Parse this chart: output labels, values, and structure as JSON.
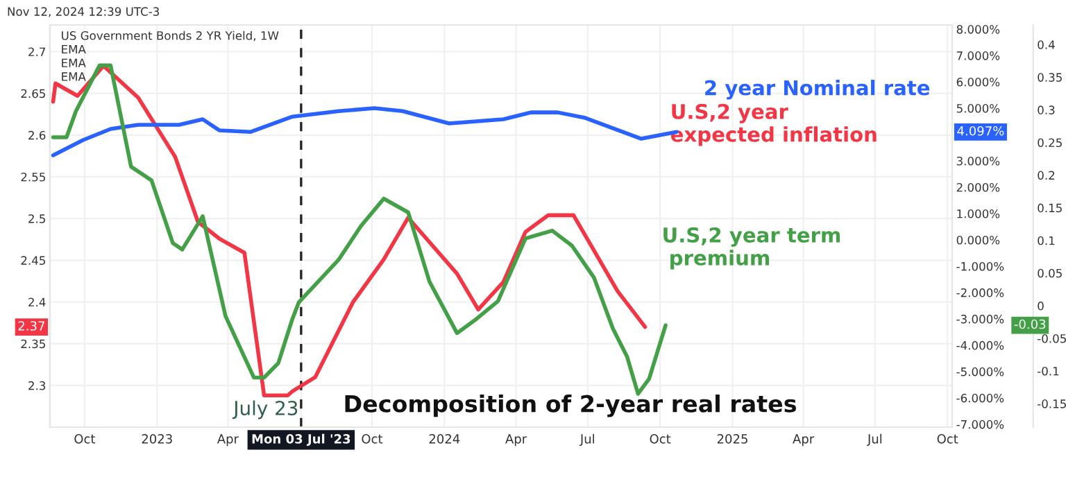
{
  "chart_data": {
    "type": "line",
    "title": "Decomposition of 2-year real rates",
    "subtitle": "US Government Bonds 2 YR Yield, 1W",
    "annotations": [
      "Nov 12, 2024 12:39 UTC-3",
      "EMA",
      "EMA",
      "EMA",
      "4.097%",
      "2.37",
      "-0.03"
    ],
    "xlim": [
      "2022-08-18",
      "2025-10-07"
    ],
    "xticks": [
      {
        "value": "2022-10-01",
        "label": "Oct"
      },
      {
        "value": "2023-01-01",
        "label": "2023"
      },
      {
        "value": "2023-04-01",
        "label": "Apr"
      },
      {
        "value": "2023-07-03",
        "label": "Mon 03 Jul '23"
      },
      {
        "value": "2023-10-01",
        "label": "Oct"
      },
      {
        "value": "2024-01-01",
        "label": "2024"
      },
      {
        "value": "2024-04-01",
        "label": "Apr"
      },
      {
        "value": "2024-07-01",
        "label": "Jul"
      },
      {
        "value": "2024-10-01",
        "label": "Oct"
      },
      {
        "value": "2025-01-01",
        "label": "2025"
      },
      {
        "value": "2025-04-01",
        "label": "Apr"
      },
      {
        "value": "2025-07-01",
        "label": "Jul"
      },
      {
        "value": "2025-10-01",
        "label": "Oct"
      }
    ],
    "ylim": [
      2.25,
      2.732
    ],
    "yticks": [
      2.3,
      2.35,
      2.4,
      2.45,
      2.5,
      2.55,
      2.6,
      2.65,
      2.7
    ],
    "y2lim": [
      -7.11,
      8.16
    ],
    "y2ticks": [
      {
        "value": -7,
        "label": "-7.000%"
      },
      {
        "value": -6,
        "label": "-6.000%"
      },
      {
        "value": -5,
        "label": "-5.000%"
      },
      {
        "value": -4,
        "label": "-4.000%"
      },
      {
        "value": -3,
        "label": "-3.000%"
      },
      {
        "value": -2,
        "label": "-2.000%"
      },
      {
        "value": -1,
        "label": "-1.000%"
      },
      {
        "value": 0,
        "label": "0.000%"
      },
      {
        "value": 1,
        "label": "1.000%"
      },
      {
        "value": 2,
        "label": "2.000%"
      },
      {
        "value": 3,
        "label": "3.000%"
      },
      {
        "value": 5,
        "label": "5.000%"
      },
      {
        "value": 6,
        "label": "6.000%"
      },
      {
        "value": 7,
        "label": "7.000%"
      },
      {
        "value": 8,
        "label": "8.000%"
      }
    ],
    "y3lim": [
      -0.186,
      0.43
    ],
    "y3ticks": [
      {
        "value": -0.15,
        "label": "-0.15"
      },
      {
        "value": -0.1,
        "label": "-0.1"
      },
      {
        "value": -0.05,
        "label": "-0.05"
      },
      0,
      0.05,
      0.1,
      0.15,
      0.2,
      0.25,
      0.3,
      0.35,
      0.4
    ],
    "grid": true,
    "legend": false,
    "ref_lines": [
      {
        "axis": "x",
        "value": "2023-07-03",
        "label": "July 23",
        "color": "#222222",
        "line_style": "dashed"
      }
    ],
    "series": [
      {
        "name": "2 year Nominal rate",
        "color": "#2962ff",
        "axis": "y2",
        "x": [
          "2022-08-22",
          "2022-09-29",
          "2022-11-03",
          "2022-12-08",
          "2023-01-29",
          "2023-02-28",
          "2023-03-21",
          "2023-04-30",
          "2023-06-22",
          "2023-08-20",
          "2023-10-04",
          "2023-11-09",
          "2024-01-07",
          "2024-03-16",
          "2024-04-20",
          "2024-05-24",
          "2024-06-28",
          "2024-09-07",
          "2024-10-22"
        ],
        "values": [
          3.21,
          3.79,
          4.21,
          4.37,
          4.37,
          4.58,
          4.16,
          4.1,
          4.68,
          4.89,
          5.0,
          4.89,
          4.42,
          4.58,
          4.84,
          4.84,
          4.63,
          3.84,
          4.097
        ]
      },
      {
        "name": "U.S,2 year\nexpected inflation",
        "color": "#f23645",
        "axis": "y",
        "x": [
          "2022-08-22",
          "2022-08-25",
          "2022-09-22",
          "2022-10-25",
          "2022-12-08",
          "2023-01-24",
          "2023-02-22",
          "2023-03-21",
          "2023-04-22",
          "2023-05-17",
          "2023-06-16",
          "2023-06-22",
          "2023-07-21",
          "2023-09-07",
          "2023-10-16",
          "2023-11-16",
          "2024-01-17",
          "2024-02-13",
          "2024-03-16",
          "2024-04-13",
          "2024-05-12",
          "2024-06-13",
          "2024-08-08",
          "2024-09-12"
        ],
        "values": [
          2.64,
          2.662,
          2.647,
          2.683,
          2.645,
          2.574,
          2.496,
          2.476,
          2.459,
          2.288,
          2.288,
          2.293,
          2.31,
          2.4,
          2.451,
          2.501,
          2.434,
          2.391,
          2.424,
          2.484,
          2.504,
          2.504,
          2.413,
          2.37
        ]
      },
      {
        "name": "U.S,2 year term\n premium",
        "color": "#43a047",
        "axis": "y3",
        "x": [
          "2022-08-22",
          "2022-09-08",
          "2022-09-20",
          "2022-10-20",
          "2022-11-03",
          "2022-11-29",
          "2022-12-25",
          "2023-01-21",
          "2023-02-02",
          "2023-02-28",
          "2023-03-29",
          "2023-05-04",
          "2023-05-17",
          "2023-06-04",
          "2023-06-22",
          "2023-06-30",
          "2023-08-20",
          "2023-09-17",
          "2023-10-16",
          "2023-11-16",
          "2023-12-13",
          "2024-01-17",
          "2024-02-11",
          "2024-03-09",
          "2024-04-13",
          "2024-05-17",
          "2024-06-11",
          "2024-07-09",
          "2024-08-02",
          "2024-08-20",
          "2024-09-03",
          "2024-09-17",
          "2024-10-08"
        ],
        "values": [
          0.258,
          0.258,
          0.298,
          0.368,
          0.368,
          0.213,
          0.192,
          0.096,
          0.086,
          0.137,
          -0.016,
          -0.11,
          -0.11,
          -0.088,
          -0.02,
          0.005,
          0.071,
          0.122,
          0.164,
          0.143,
          0.037,
          -0.042,
          -0.02,
          0.007,
          0.103,
          0.115,
          0.092,
          0.043,
          -0.035,
          -0.078,
          -0.135,
          -0.112,
          -0.03
        ]
      }
    ]
  }
}
